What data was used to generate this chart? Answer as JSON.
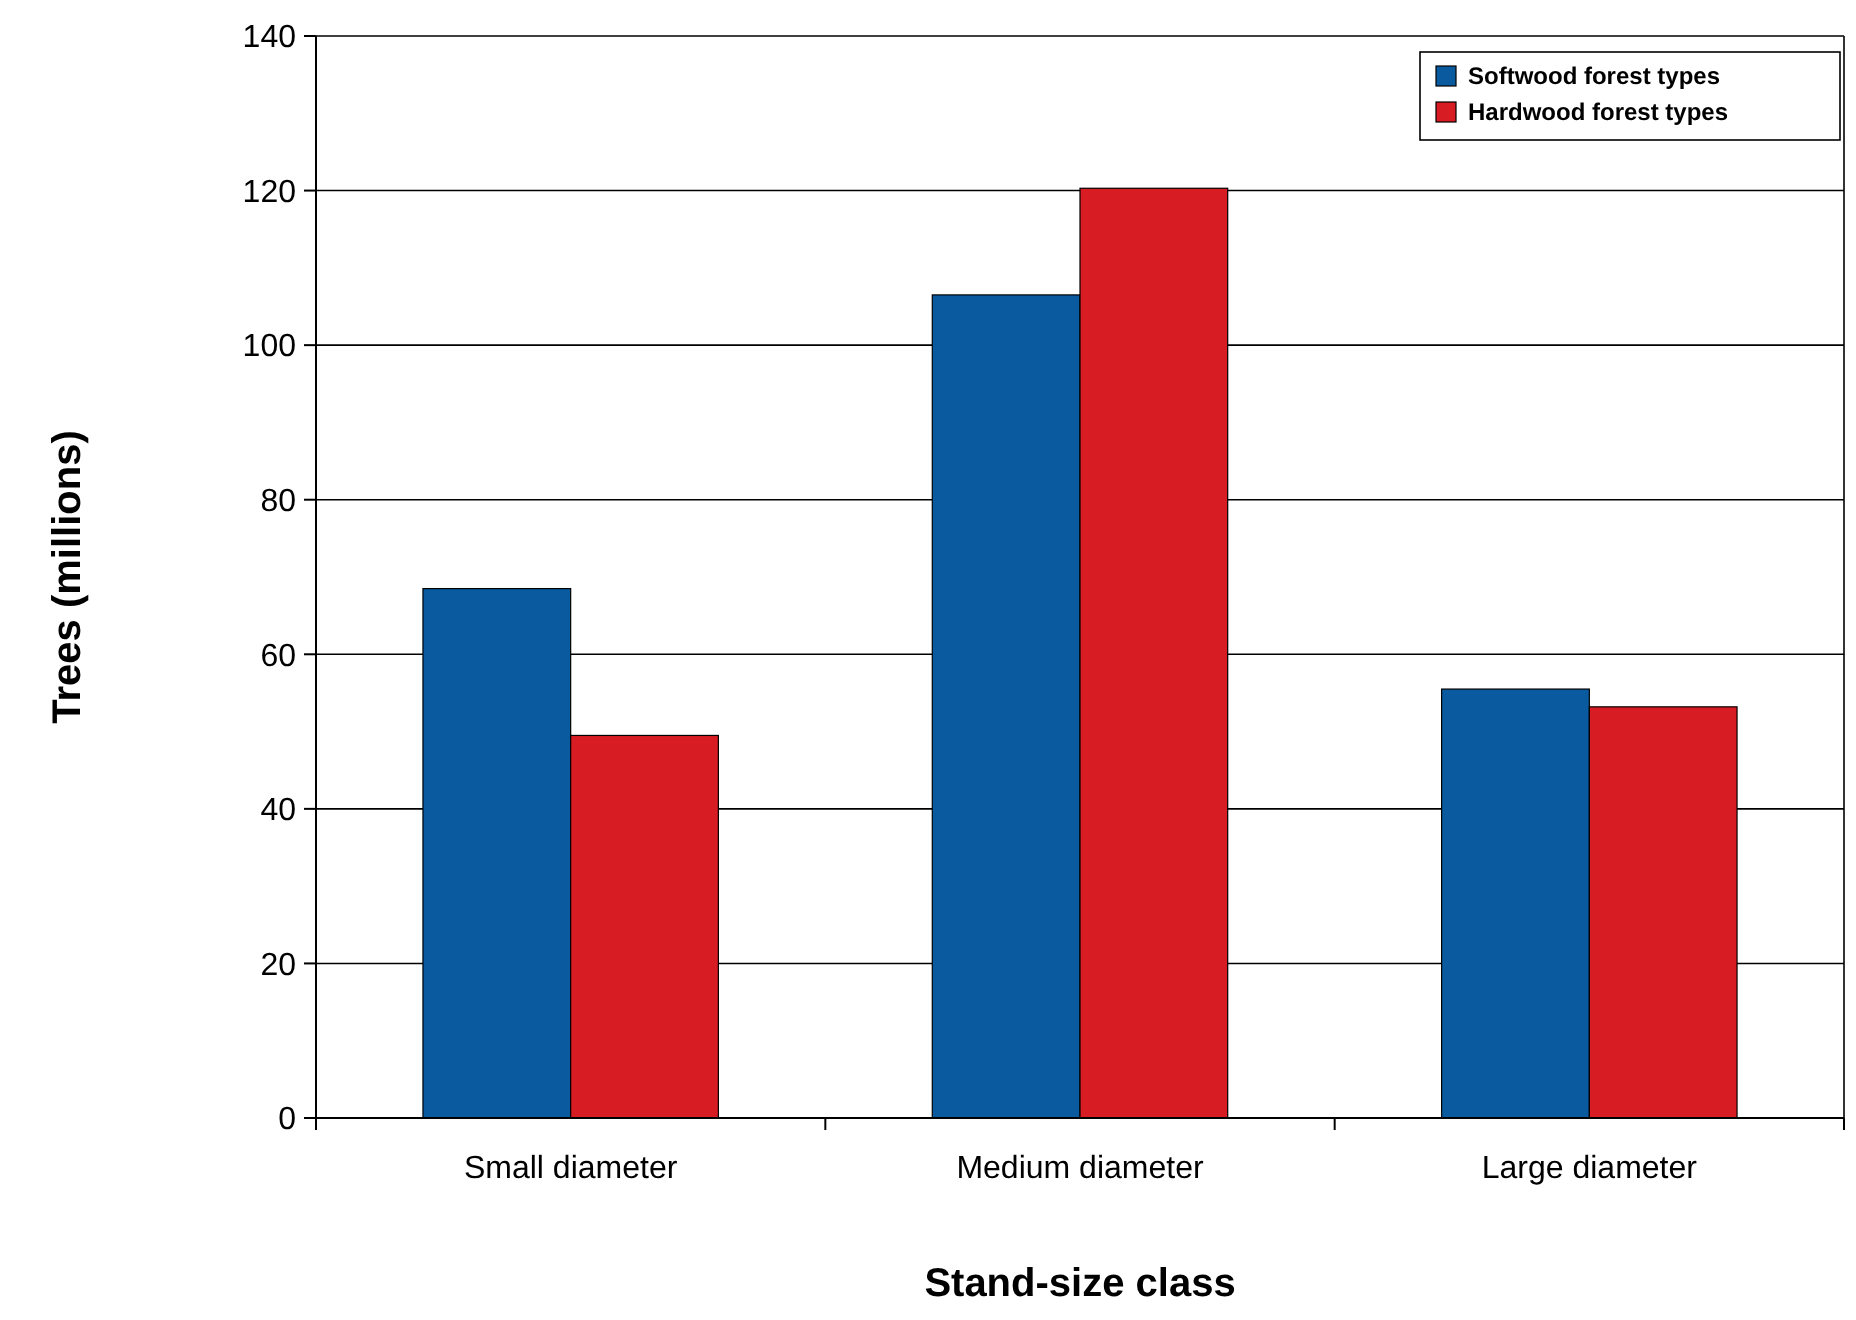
{
  "chart_data": {
    "type": "bar",
    "xlabel": "Stand-size class",
    "ylabel": "Trees (millions)",
    "categories": [
      "Small diameter",
      "Medium diameter",
      "Large diameter"
    ],
    "series": [
      {
        "name": "Softwood forest types",
        "color": "#0a5aa0",
        "values": [
          68.5,
          106.5,
          55.5
        ]
      },
      {
        "name": "Hardwood forest types",
        "color": "#d81c24",
        "values": [
          49.5,
          120.3,
          53.2
        ]
      }
    ],
    "ylim": [
      0,
      140
    ],
    "yticks": [
      0,
      20,
      40,
      60,
      80,
      100,
      120,
      140
    ],
    "grid": "y",
    "legend": "top right"
  }
}
